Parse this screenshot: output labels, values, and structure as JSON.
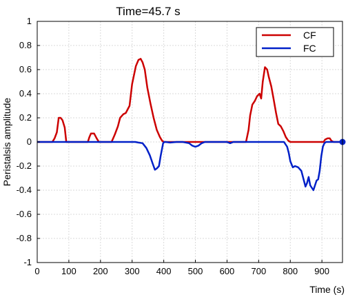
{
  "chart_data": {
    "type": "line",
    "title": "Time=45.7 s",
    "xlabel": "Time (s)",
    "ylabel": "Peristalsis amplitude",
    "xlim": [
      0,
      965
    ],
    "ylim": [
      -1,
      1
    ],
    "xticks": [
      "0",
      "100",
      "200",
      "300",
      "400",
      "500",
      "600",
      "700",
      "800",
      "900"
    ],
    "yticks": [
      "1",
      "0.8",
      "0.6",
      "0.4",
      "0.2",
      "0",
      "-0.2",
      "-0.4",
      "-0.6",
      "-0.8",
      "-1"
    ],
    "grid": true,
    "legend_position": "top-right",
    "series": [
      {
        "name": "CF",
        "color": "#cc0000",
        "x": [
          0,
          48,
          55,
          62,
          68,
          74,
          80,
          87,
          92,
          160,
          165,
          170,
          180,
          188,
          195,
          235,
          245,
          255,
          262,
          272,
          280,
          292,
          300,
          312,
          320,
          327,
          333,
          340,
          348,
          358,
          368,
          378,
          388,
          395,
          400,
          660,
          668,
          673,
          680,
          688,
          695,
          703,
          708,
          713,
          720,
          727,
          732,
          740,
          747,
          755,
          762,
          770,
          778,
          786,
          794,
          800,
          905,
          910,
          918,
          925,
          930,
          937,
          965
        ],
        "y": [
          0,
          0,
          0.03,
          0.08,
          0.2,
          0.2,
          0.18,
          0.12,
          0,
          0,
          0.04,
          0.07,
          0.07,
          0.03,
          0,
          0,
          0.06,
          0.13,
          0.2,
          0.23,
          0.24,
          0.3,
          0.48,
          0.63,
          0.68,
          0.69,
          0.66,
          0.6,
          0.45,
          0.32,
          0.2,
          0.1,
          0.04,
          0.01,
          0,
          0,
          0.1,
          0.22,
          0.31,
          0.34,
          0.38,
          0.4,
          0.36,
          0.5,
          0.62,
          0.6,
          0.54,
          0.46,
          0.36,
          0.24,
          0.15,
          0.13,
          0.09,
          0.04,
          0.01,
          0,
          0,
          0.02,
          0.03,
          0.03,
          0.01,
          0,
          0
        ],
        "marker_last": false
      },
      {
        "name": "FC",
        "color": "#0020c8",
        "x": [
          0,
          300,
          310,
          320,
          333,
          345,
          356,
          365,
          372,
          378,
          385,
          390,
          398,
          402,
          406,
          420,
          440,
          460,
          480,
          490,
          500,
          510,
          520,
          530,
          600,
          610,
          620,
          700,
          780,
          790,
          795,
          800,
          808,
          815,
          825,
          835,
          843,
          848,
          853,
          858,
          863,
          868,
          873,
          878,
          883,
          888,
          893,
          898,
          903,
          908,
          913,
          920,
          965
        ],
        "y": [
          0,
          0,
          0,
          -0.005,
          -0.01,
          -0.05,
          -0.11,
          -0.18,
          -0.23,
          -0.22,
          -0.2,
          -0.12,
          -0.01,
          0,
          0,
          -0.005,
          0,
          0,
          -0.01,
          -0.03,
          -0.04,
          -0.03,
          -0.01,
          0,
          0,
          -0.01,
          0,
          0,
          0,
          -0.04,
          -0.09,
          -0.16,
          -0.21,
          -0.2,
          -0.21,
          -0.24,
          -0.32,
          -0.37,
          -0.34,
          -0.29,
          -0.36,
          -0.38,
          -0.4,
          -0.36,
          -0.32,
          -0.31,
          -0.24,
          -0.12,
          -0.04,
          -0.01,
          0,
          0,
          0
        ],
        "marker_last": true
      }
    ]
  }
}
